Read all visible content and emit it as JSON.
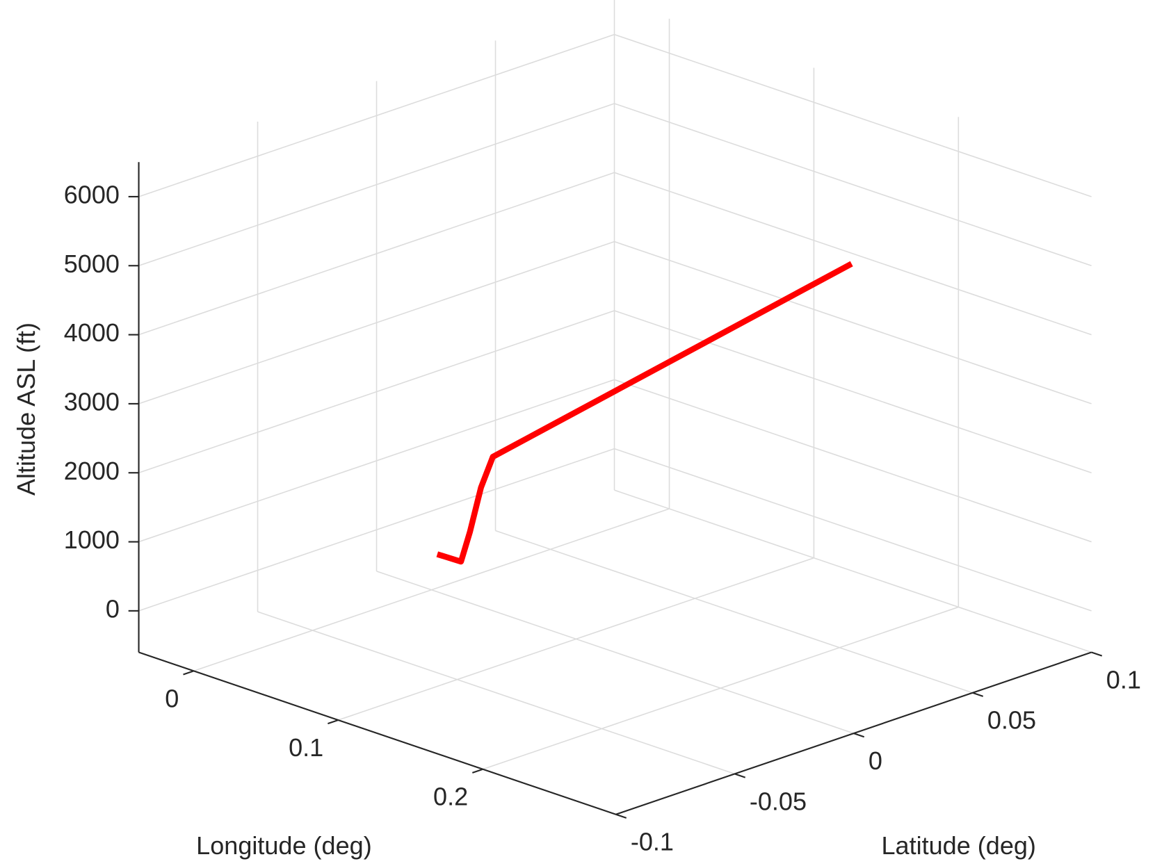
{
  "chart_data": {
    "type": "line3d",
    "xlabel": "Longitude (deg)",
    "ylabel": "Latitude (deg)",
    "zlabel": "Altitude ASL (ft)",
    "xlim": [
      -0.038,
      0.292
    ],
    "xticks": [
      0,
      0.1,
      0.2
    ],
    "ylim": [
      -0.1,
      0.1
    ],
    "yticks": [
      -0.1,
      -0.05,
      0,
      0.05,
      0.1
    ],
    "zlim": [
      -600,
      6500
    ],
    "zticks": [
      0,
      1000,
      2000,
      3000,
      4000,
      5000,
      6000
    ],
    "grid": true,
    "series": [
      {
        "color": "#ff0000",
        "x": [
          0.078,
          0.0867,
          0.0875,
          0.0885,
          0.0895,
          0.11,
          0.207
        ],
        "y": [
          -0.045,
          -0.0403,
          -0.037,
          -0.033,
          -0.0286,
          -0.018,
          0.0508
        ],
        "values": [
          1000,
          900,
          1300,
          1900,
          2300,
          2750,
          5000
        ]
      }
    ]
  }
}
